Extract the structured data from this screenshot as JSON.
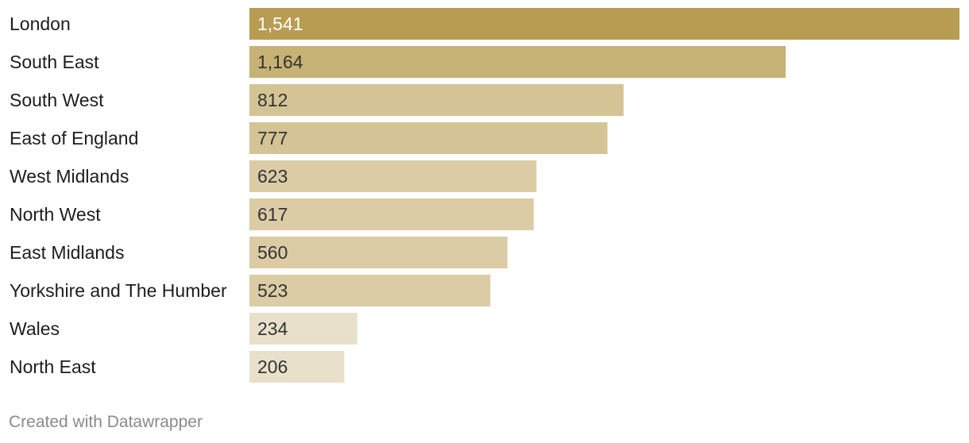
{
  "chart_data": {
    "type": "bar",
    "orientation": "horizontal",
    "categories": [
      "London",
      "South East",
      "South West",
      "East of England",
      "West Midlands",
      "North West",
      "East Midlands",
      "Yorkshire and The Humber",
      "Wales",
      "North East"
    ],
    "values": [
      1541,
      1164,
      812,
      777,
      623,
      617,
      560,
      523,
      234,
      206
    ],
    "value_labels": [
      "1,541",
      "1,164",
      "812",
      "777",
      "623",
      "617",
      "560",
      "523",
      "234",
      "206"
    ],
    "bar_colors": [
      "#b89c52",
      "#c7b275",
      "#d4c495",
      "#d4c495",
      "#dbcca6",
      "#dbcca6",
      "#dbcca6",
      "#dbcca6",
      "#e8e0ca",
      "#e8e0ca"
    ],
    "value_label_colors": [
      "#ffffff",
      "#333333",
      "#333333",
      "#333333",
      "#333333",
      "#333333",
      "#333333",
      "#333333",
      "#333333",
      "#333333"
    ],
    "xlim": [
      0,
      1541
    ],
    "grid": false,
    "legend": "none"
  },
  "footer": {
    "credit": "Created with Datawrapper"
  }
}
